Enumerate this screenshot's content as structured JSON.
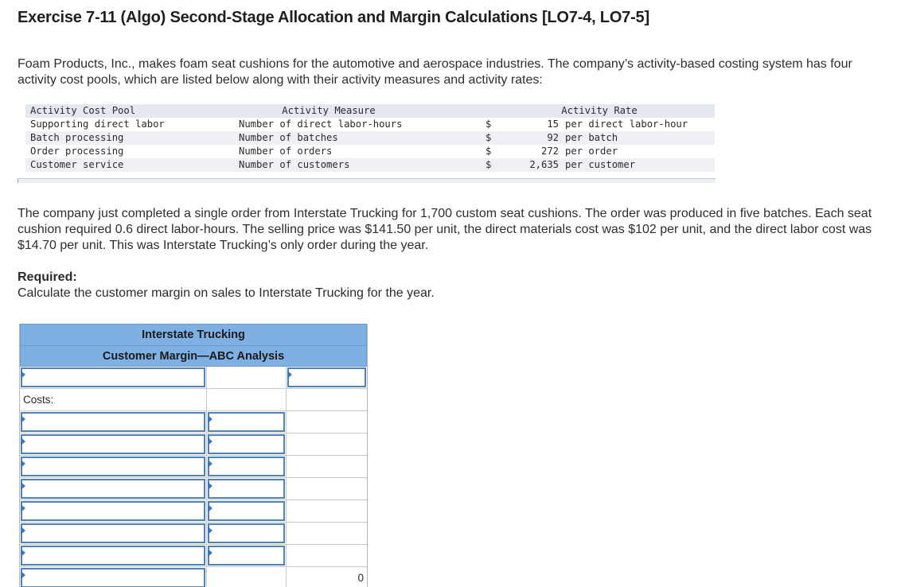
{
  "title": "Exercise 7-11 (Algo) Second-Stage Allocation and Margin Calculations [LO7-4, LO7-5]",
  "intro": "Foam Products, Inc., makes foam seat cushions for the automotive and aerospace industries. The company’s activity-based costing system has four activity cost pools, which are listed below along with their activity measures and activity rates:",
  "rates_table": {
    "headers": {
      "pool": "Activity Cost Pool",
      "measure": "Activity Measure",
      "rate": "Activity Rate"
    },
    "rows": [
      {
        "pool": "Supporting direct labor",
        "measure": "Number of direct labor-hours",
        "dollar": "$",
        "amount": "15",
        "unit": "per direct labor-hour"
      },
      {
        "pool": "Batch processing",
        "measure": "Number of batches",
        "dollar": "$",
        "amount": "92",
        "unit": "per batch"
      },
      {
        "pool": "Order processing",
        "measure": "Number of orders",
        "dollar": "$",
        "amount": "272",
        "unit": "per order"
      },
      {
        "pool": "Customer service",
        "measure": "Number of customers",
        "dollar": "$",
        "amount": "2,635",
        "unit": "per customer"
      }
    ]
  },
  "story": "The company just completed a single order from Interstate Trucking for 1,700 custom seat cushions. The order was produced in five batches. Each seat cushion required 0.6 direct labor-hours. The selling price was $141.50 per unit, the direct materials cost was $102 per unit, and the direct labor cost was $14.70 per unit. This was Interstate Trucking’s only order during the year.",
  "required": {
    "label": "Required:",
    "text": "Calculate the customer margin on sales to Interstate Trucking for the year."
  },
  "answer_table": {
    "title": "Interstate Trucking",
    "subtitle": "Customer Margin—ABC Analysis",
    "costs_label": "Costs:",
    "total_value": "0"
  }
}
